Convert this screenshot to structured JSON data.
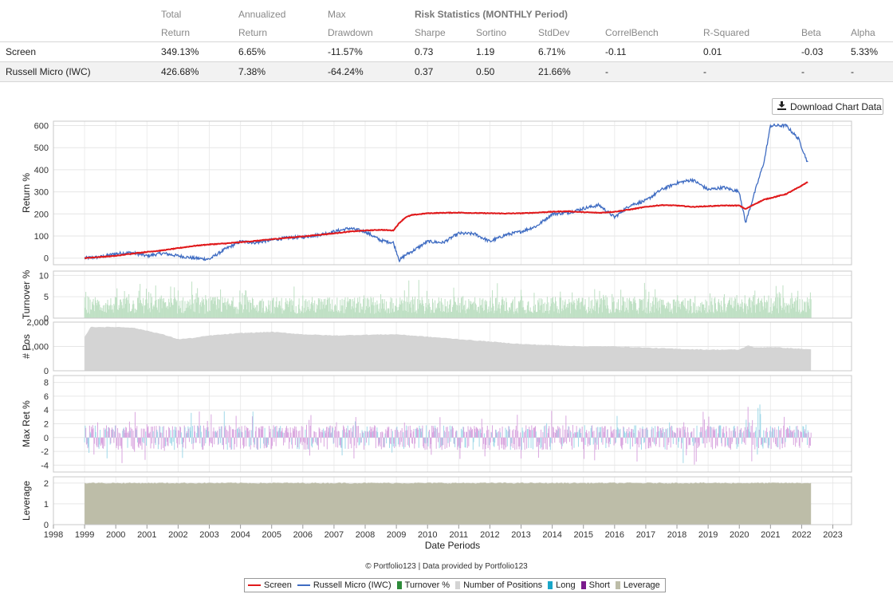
{
  "stats_table": {
    "group_header": "Risk Statistics (MONTHLY Period)",
    "header_row1": [
      "",
      "Total",
      "Annualized",
      "Max"
    ],
    "header_row2": [
      "",
      "Return",
      "Return",
      "Drawdown",
      "Sharpe",
      "Sortino",
      "StdDev",
      "CorrelBench",
      "R-Squared",
      "Beta",
      "Alpha"
    ],
    "rows": [
      [
        "Screen",
        "349.13%",
        "6.65%",
        "-11.57%",
        "0.73",
        "1.19",
        "6.71%",
        "-0.11",
        "0.01",
        "-0.03",
        "5.33%"
      ],
      [
        "Russell Micro (IWC)",
        "426.68%",
        "7.38%",
        "-64.24%",
        "0.37",
        "0.50",
        "21.66%",
        "-",
        "-",
        "-",
        "-"
      ]
    ]
  },
  "download_button": {
    "label": "Download Chart Data",
    "icon": "download-icon"
  },
  "credit": "© Portfolio123 | Data provided by Portfolio123",
  "colors": {
    "screen": "#e0191b",
    "benchmark": "#3f6cc2",
    "turnover": "#2e8b3a",
    "positions": "#d4d4d4",
    "long": "#1aa6c8",
    "short": "#7a1a8c",
    "leverage": "#bdbda8"
  },
  "chart_data": [
    {
      "type": "line",
      "ylabel": "Return %",
      "ylim": [
        -30,
        620
      ],
      "yticks": [
        0,
        100,
        200,
        300,
        400,
        500,
        600
      ],
      "x": [
        1999.0,
        1999.5,
        2000.0,
        2000.5,
        2001.0,
        2001.5,
        2002.0,
        2002.5,
        2003.0,
        2003.5,
        2004.0,
        2004.5,
        2005.0,
        2005.5,
        2006.0,
        2006.5,
        2007.0,
        2007.5,
        2008.0,
        2008.5,
        2008.9,
        2009.1,
        2009.3,
        2009.5,
        2010.0,
        2010.5,
        2011.0,
        2011.5,
        2012.0,
        2012.5,
        2013.0,
        2013.5,
        2014.0,
        2014.5,
        2015.0,
        2015.5,
        2016.0,
        2016.5,
        2017.0,
        2017.5,
        2018.0,
        2018.5,
        2019.0,
        2019.5,
        2020.0,
        2020.2,
        2020.5,
        2020.8,
        2021.0,
        2021.5,
        2021.9,
        2022.2
      ],
      "series": [
        {
          "name": "Screen",
          "values": [
            0,
            5,
            10,
            20,
            28,
            35,
            45,
            55,
            62,
            66,
            72,
            78,
            85,
            92,
            98,
            105,
            112,
            120,
            125,
            128,
            125,
            160,
            185,
            195,
            203,
            205,
            206,
            204,
            203,
            202,
            203,
            206,
            210,
            212,
            208,
            205,
            210,
            220,
            232,
            240,
            238,
            232,
            235,
            238,
            238,
            222,
            245,
            265,
            272,
            290,
            320,
            345
          ]
        },
        {
          "name": "Russell Micro (IWC)",
          "values": [
            0,
            5,
            20,
            25,
            10,
            22,
            10,
            0,
            -5,
            40,
            75,
            70,
            82,
            92,
            95,
            105,
            120,
            135,
            120,
            80,
            70,
            -10,
            15,
            30,
            75,
            70,
            112,
            110,
            75,
            105,
            120,
            145,
            200,
            205,
            225,
            240,
            185,
            240,
            260,
            310,
            340,
            355,
            310,
            320,
            300,
            160,
            300,
            440,
            600,
            600,
            540,
            430
          ]
        }
      ]
    },
    {
      "type": "bar",
      "ylabel": "Turnover %",
      "ylim": [
        0,
        11
      ],
      "yticks": [
        0,
        5,
        10
      ]
    },
    {
      "type": "area",
      "ylabel": "# Pos",
      "ylim": [
        0,
        2000
      ],
      "yticks": [
        "0",
        "1,000",
        "2,000"
      ],
      "x": [
        1999.0,
        1999.2,
        2000.0,
        2000.5,
        2001.0,
        2001.5,
        2002.0,
        2002.5,
        2003.0,
        2004.0,
        2005.0,
        2006.0,
        2007.0,
        2008.0,
        2009.0,
        2010.0,
        2011.0,
        2012.0,
        2013.0,
        2014.0,
        2015.0,
        2016.0,
        2017.0,
        2018.0,
        2019.0,
        2020.0,
        2020.3,
        2020.5,
        2021.0,
        2022.0,
        2022.3
      ],
      "values": [
        1400,
        1800,
        1800,
        1780,
        1650,
        1500,
        1300,
        1350,
        1450,
        1550,
        1600,
        1500,
        1450,
        1480,
        1500,
        1400,
        1300,
        1200,
        1100,
        1050,
        1000,
        1000,
        950,
        900,
        870,
        870,
        1050,
        950,
        980,
        900,
        880
      ]
    },
    {
      "type": "bar",
      "ylabel": "Max Ret %",
      "ylim": [
        -5,
        9
      ],
      "yticks": [
        -4,
        -2,
        0,
        2,
        4,
        6,
        8
      ]
    },
    {
      "type": "area",
      "ylabel": "Leverage",
      "ylim": [
        0,
        2.3
      ],
      "yticks": [
        0,
        1,
        2
      ],
      "x": [
        1999.0,
        2022.3
      ],
      "values": [
        2,
        2
      ]
    }
  ],
  "x_axis": {
    "label": "Date Periods",
    "ticks": [
      1998,
      1999,
      2000,
      2001,
      2002,
      2003,
      2004,
      2005,
      2006,
      2007,
      2008,
      2009,
      2010,
      2011,
      2012,
      2013,
      2014,
      2015,
      2016,
      2017,
      2018,
      2019,
      2020,
      2021,
      2022,
      2023
    ]
  },
  "legend": [
    {
      "label": "Screen",
      "kind": "line",
      "color": "#e0191b"
    },
    {
      "label": "Russell Micro (IWC)",
      "kind": "line",
      "color": "#3f6cc2"
    },
    {
      "label": "Turnover %",
      "kind": "box",
      "color": "#2e8b3a"
    },
    {
      "label": "Number of Positions",
      "kind": "box",
      "color": "#d4d4d4"
    },
    {
      "label": "Long",
      "kind": "box",
      "color": "#1aa6c8"
    },
    {
      "label": "Short",
      "kind": "box",
      "color": "#7a1a8c"
    },
    {
      "label": "Leverage",
      "kind": "box",
      "color": "#bdbda8"
    }
  ]
}
